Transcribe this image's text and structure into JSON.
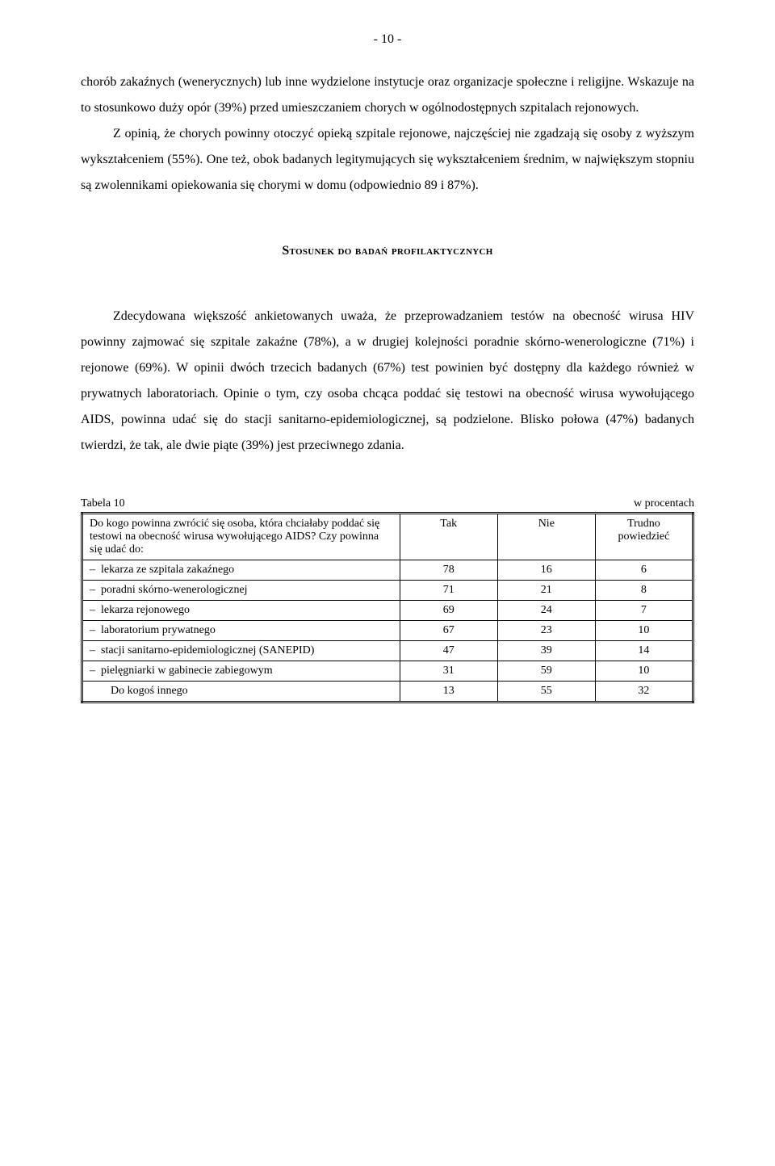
{
  "page_number": "- 10 -",
  "paragraphs": {
    "p1a": "chorób zakaźnych (wenerycznych) lub inne wydzielone instytucje oraz organizacje społeczne i religijne. Wskazuje na to stosunkowo duży opór (39%) przed umieszczaniem chorych w ogólnodostępnych szpitalach rejonowych.",
    "p1b": "Z opinią, że chorych powinny otoczyć opieką szpitale rejonowe, najczęściej nie zgadzają się osoby z wyższym wykształceniem (55%). One też, obok badanych legitymujących się wykształceniem średnim, w największym stopniu są zwolennikami opiekowania się chorymi w domu (odpowiednio 89 i 87%).",
    "p2": "Zdecydowana większość ankietowanych uważa, że przeprowadzaniem testów na obecność wirusa HIV powinny zajmować się szpitale zakaźne (78%), a w drugiej kolejności poradnie skórno-wenerologiczne (71%) i rejonowe (69%). W opinii dwóch trzecich badanych (67%) test powinien być dostępny dla każdego również w prywatnych laboratoriach. Opinie o tym, czy osoba chcąca poddać się testowi na obecność wirusa wywołującego AIDS, powinna udać się do stacji sanitarno-epidemiologicznej, są podzielone. Blisko połowa (47%) badanych twierdzi, że tak, ale dwie piąte (39%) jest przeciwnego zdania."
  },
  "section_title": "Stosunek do badań profilaktycznych",
  "table": {
    "label": "Tabela 10",
    "unit": "w procentach",
    "question": "Do kogo powinna zwrócić się osoba, która chciałaby poddać się testowi na obecność wirusa wywołującego AIDS? Czy powinna się udać do:",
    "columns": [
      "Tak",
      "Nie",
      "Trudno powiedzieć"
    ],
    "rows": [
      {
        "label": "lekarza ze szpitala zakaźnego",
        "dash": true,
        "values": [
          "78",
          "16",
          "6"
        ]
      },
      {
        "label": "poradni skórno-wenerologicznej",
        "dash": true,
        "values": [
          "71",
          "21",
          "8"
        ]
      },
      {
        "label": "lekarza rejonowego",
        "dash": true,
        "values": [
          "69",
          "24",
          "7"
        ]
      },
      {
        "label": "laboratorium prywatnego",
        "dash": true,
        "values": [
          "67",
          "23",
          "10"
        ]
      },
      {
        "label": "stacji sanitarno-epidemiologicznej (SANEPID)",
        "dash": true,
        "values": [
          "47",
          "39",
          "14"
        ]
      },
      {
        "label": "pielęgniarki w gabinecie zabiegowym",
        "dash": true,
        "values": [
          "31",
          "59",
          "10"
        ]
      },
      {
        "label": "Do kogoś innego",
        "dash": false,
        "values": [
          "13",
          "55",
          "32"
        ]
      }
    ]
  }
}
